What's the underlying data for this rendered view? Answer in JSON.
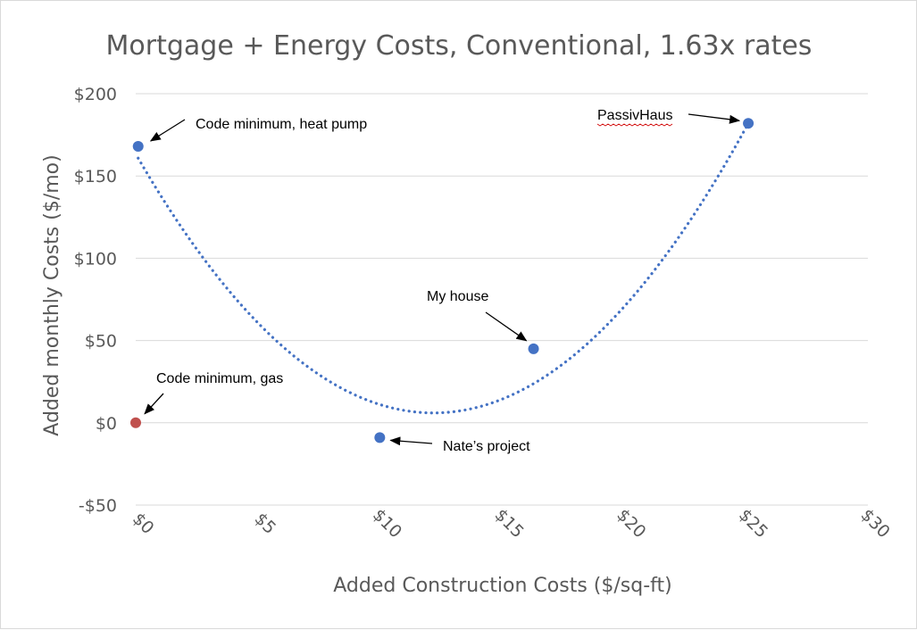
{
  "chart_data": {
    "type": "scatter",
    "title": "Mortgage + Energy Costs, Conventional,  1.63x rates",
    "xlabel": "Added Construction Costs ($/sq-ft)",
    "ylabel": "Added monthly Costs ($/mo)",
    "xlim": [
      0,
      30
    ],
    "ylim": [
      -50,
      200
    ],
    "x_ticks": [
      0,
      5,
      10,
      15,
      20,
      25,
      30
    ],
    "x_tick_labels": [
      "$0",
      "$5",
      "$10",
      "$15",
      "$20",
      "$25",
      "$30"
    ],
    "y_ticks": [
      200,
      150,
      100,
      50,
      0,
      -50
    ],
    "y_tick_labels": [
      "$200",
      "$150",
      "$100",
      "$50",
      "$0",
      "-$50"
    ],
    "grid": "horizontal",
    "points": [
      {
        "name": "Code minimum, heat pump",
        "x": 0.1,
        "y": 168,
        "color": "#4472c4"
      },
      {
        "name": "Code minimum, gas",
        "x": 0.0,
        "y": 0,
        "color": "#c0504d"
      },
      {
        "name": "Nate’s project",
        "x": 10.0,
        "y": -9,
        "color": "#4472c4"
      },
      {
        "name": "My house",
        "x": 16.3,
        "y": 45,
        "color": "#4472c4"
      },
      {
        "name": "PassivHaus",
        "x": 25.1,
        "y": 182,
        "color": "#4472c4"
      }
    ],
    "trendline": {
      "type": "polynomial",
      "order": 2,
      "style": "dotted",
      "color": "#4472c4",
      "x_range": [
        0.1,
        25.1
      ],
      "vertex": [
        12.2,
        6
      ]
    },
    "annotations": [
      {
        "text": "Code minimum, heat pump",
        "target": 0
      },
      {
        "text": "Code minimum, gas",
        "target": 1
      },
      {
        "text": "Nate’s project",
        "target": 2
      },
      {
        "text": "My house",
        "target": 3
      },
      {
        "text": "PassivHaus",
        "target": 4
      }
    ]
  }
}
